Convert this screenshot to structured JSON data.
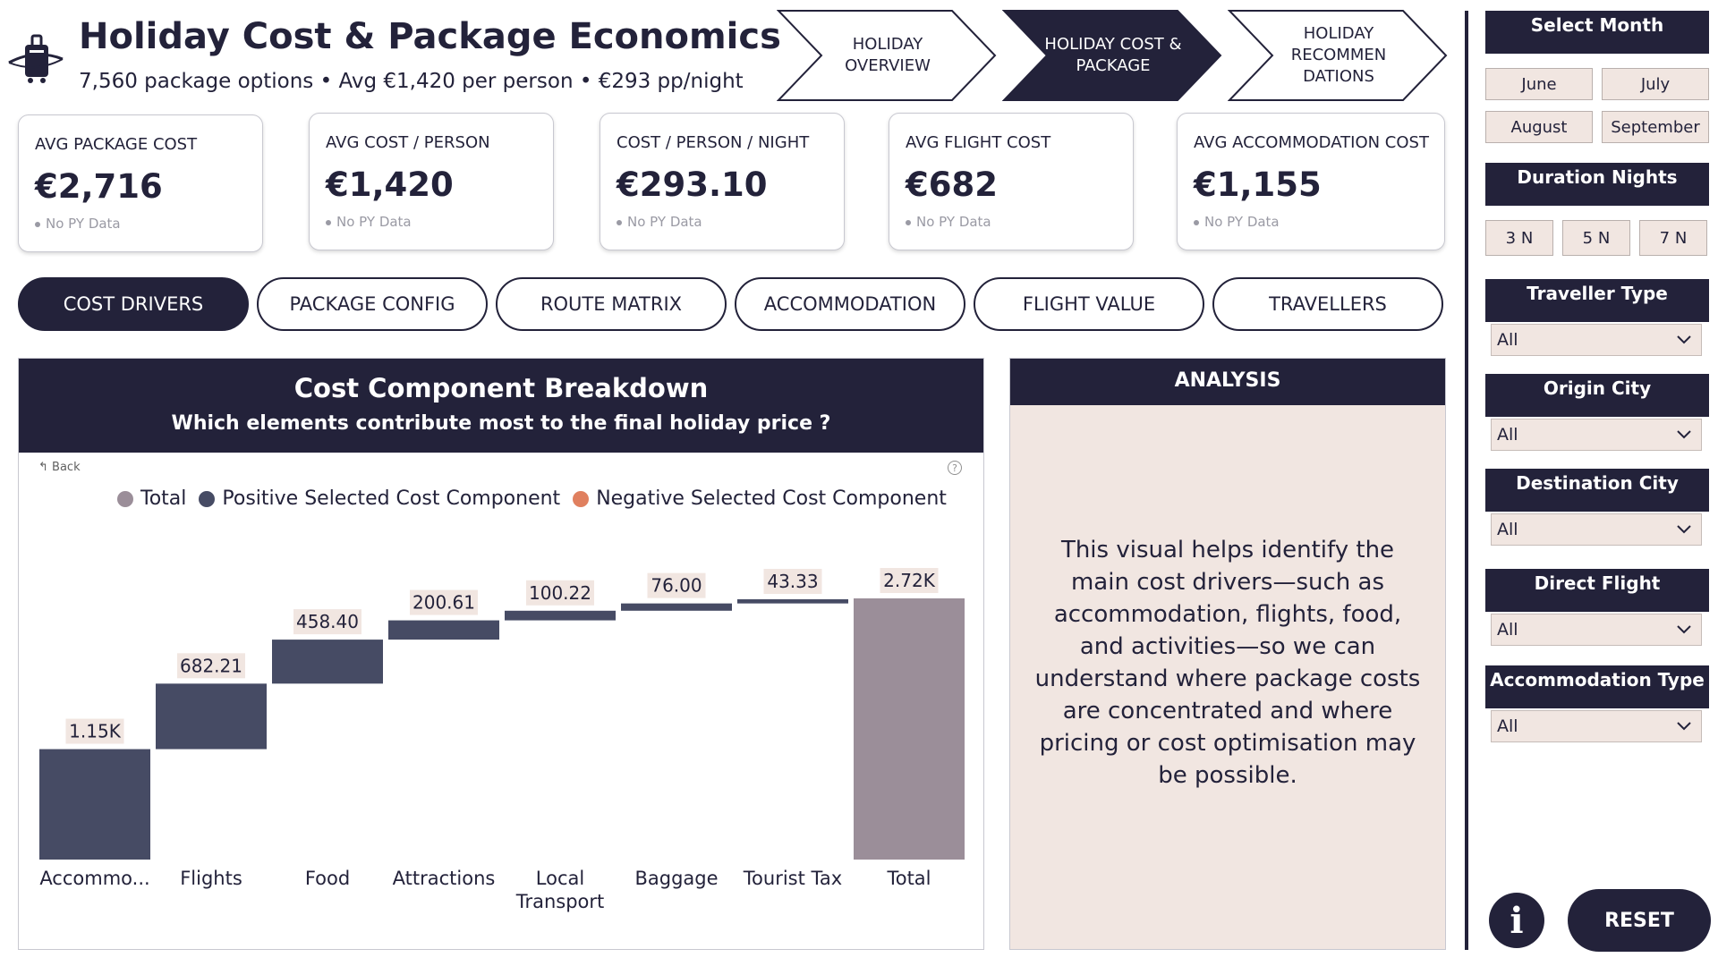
{
  "header": {
    "title": "Holiday Cost & Package Economics",
    "subtitle": "7,560 package options • Avg €1,420 per person • €293 pp/night",
    "logo_icon": "luggage-plane-icon"
  },
  "nav": [
    {
      "label": "HOLIDAY OVERVIEW",
      "active": false
    },
    {
      "label": "HOLIDAY COST & PACKAGE",
      "active": true
    },
    {
      "label": "HOLIDAY RECOMMEN DATIONS",
      "active": false
    }
  ],
  "kpis": [
    {
      "label": "AVG PACKAGE COST",
      "value": "€2,716",
      "foot": "No PY Data"
    },
    {
      "label": "AVG COST / PERSON",
      "value": "€1,420",
      "foot": "No PY Data"
    },
    {
      "label": "COST / PERSON / NIGHT",
      "value": "€293.10",
      "foot": "No PY Data"
    },
    {
      "label": "AVG FLIGHT COST",
      "value": "€682",
      "foot": "No PY Data"
    },
    {
      "label": "AVG ACCOMMODATION COST",
      "value": "€1,155",
      "foot": "No PY Data"
    }
  ],
  "tabs": [
    {
      "label": "COST DRIVERS",
      "active": true
    },
    {
      "label": "PACKAGE CONFIG",
      "active": false
    },
    {
      "label": "ROUTE MATRIX",
      "active": false
    },
    {
      "label": "ACCOMMODATION",
      "active": false
    },
    {
      "label": "FLIGHT VALUE",
      "active": false
    },
    {
      "label": "TRAVELLERS",
      "active": false
    }
  ],
  "chart_panel": {
    "title": "Cost Component Breakdown",
    "subtitle": "Which elements contribute most to the final holiday price ?",
    "back_label": "Back",
    "help_icon": "?"
  },
  "chart_data": {
    "type": "bar",
    "subtype": "waterfall",
    "title": "Cost Component Breakdown",
    "subtitle": "Which elements contribute most to the final holiday price ?",
    "categories": [
      "Accommo...",
      "Flights",
      "Food",
      "Attractions",
      "Local Transport",
      "Baggage",
      "Tourist Tax",
      "Total"
    ],
    "values": [
      1150,
      682.21,
      458.4,
      200.61,
      100.22,
      76.0,
      43.33,
      2720
    ],
    "data_labels": [
      "1.15K",
      "682.21",
      "458.40",
      "200.61",
      "100.22",
      "76.00",
      "43.33",
      "2.72K"
    ],
    "is_total": [
      false,
      false,
      false,
      false,
      false,
      false,
      false,
      true
    ],
    "legend": [
      {
        "name": "Total",
        "color": "#9b8e99"
      },
      {
        "name": "Positive Selected Cost Component",
        "color": "#464b64"
      },
      {
        "name": "Negative Selected Cost Component",
        "color": "#e0805f"
      }
    ],
    "ylim": [
      0,
      2720
    ],
    "colors": {
      "positive": "#464b64",
      "total": "#9b8e99"
    },
    "grid": false,
    "legend_position": "top"
  },
  "analysis": {
    "title": "ANALYSIS",
    "text": "This visual helps identify the main cost drivers—such as accommodation, flights, food, and activities—so we can understand where package costs are concentrated and where pricing or cost optimisation may be possible."
  },
  "filters": {
    "month": {
      "title": "Select Month",
      "options": [
        "June",
        "July",
        "August",
        "September"
      ]
    },
    "duration": {
      "title": "Duration Nights",
      "options": [
        "3 N",
        "5 N",
        "7 N"
      ]
    },
    "traveller_type": {
      "title": "Traveller Type",
      "value": "All"
    },
    "origin_city": {
      "title": "Origin City",
      "value": "All"
    },
    "destination_city": {
      "title": "Destination City",
      "value": "All"
    },
    "direct_flight": {
      "title": "Direct Flight",
      "value": "All"
    },
    "accommodation_type": {
      "title": "Accommodation Type",
      "value": "All"
    },
    "info_label": "i",
    "reset_label": "RESET"
  },
  "colors": {
    "navy": "#23223a",
    "beige": "#f1e6e1"
  }
}
